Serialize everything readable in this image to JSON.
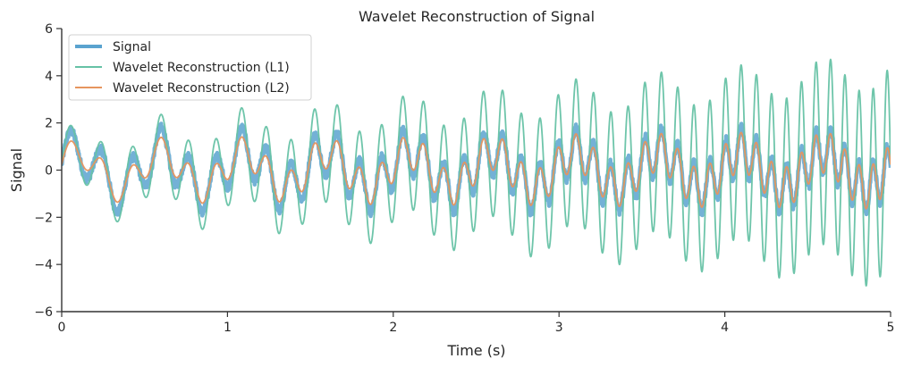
{
  "chart_data": {
    "type": "line",
    "title": "Wavelet Reconstruction of Signal",
    "xlabel": "Time (s)",
    "ylabel": "Signal",
    "xlim": [
      0,
      5
    ],
    "ylim": [
      -6,
      6
    ],
    "xticks": [
      0,
      1,
      2,
      3,
      4,
      5
    ],
    "xtick_labels": [
      "0",
      "1",
      "2",
      "3",
      "4",
      "5"
    ],
    "yticks": [
      6,
      4,
      2,
      0,
      -2,
      -4,
      -6
    ],
    "ytick_labels": [
      "6",
      "4",
      "2",
      "0",
      "−2",
      "−4",
      "−6"
    ],
    "grid": false,
    "legend_position": "top-left",
    "series": [
      {
        "name": "Signal",
        "color": "#5aa3cf",
        "noise": 0.18,
        "components": [
          {
            "amp": 0.8,
            "freq": 2.0,
            "chirp": 0,
            "growth": 0,
            "phase": 0.314
          },
          {
            "amp": 1.0,
            "freq": 5.0,
            "chirp": 1.4,
            "growth": 0,
            "phase": 0
          }
        ]
      },
      {
        "name": "Wavelet Reconstruction (L1)",
        "color": "#66c2a5",
        "noise": 0,
        "components": [
          {
            "amp": 0.8,
            "freq": 2.0,
            "chirp": 0,
            "growth": 0,
            "phase": 0.314
          },
          {
            "amp": 1.2,
            "freq": 5.0,
            "chirp": 1.4,
            "growth": 0.5,
            "phase": 0
          }
        ]
      },
      {
        "name": "Wavelet Reconstruction (L2)",
        "color": "#e6955e",
        "noise": 0,
        "components": [
          {
            "amp": 0.75,
            "freq": 2.0,
            "chirp": 0,
            "growth": 0,
            "phase": 0.314
          },
          {
            "amp": 0.6,
            "freq": 5.0,
            "chirp": 1.4,
            "growth": 0.1,
            "phase": 0
          }
        ]
      }
    ]
  }
}
